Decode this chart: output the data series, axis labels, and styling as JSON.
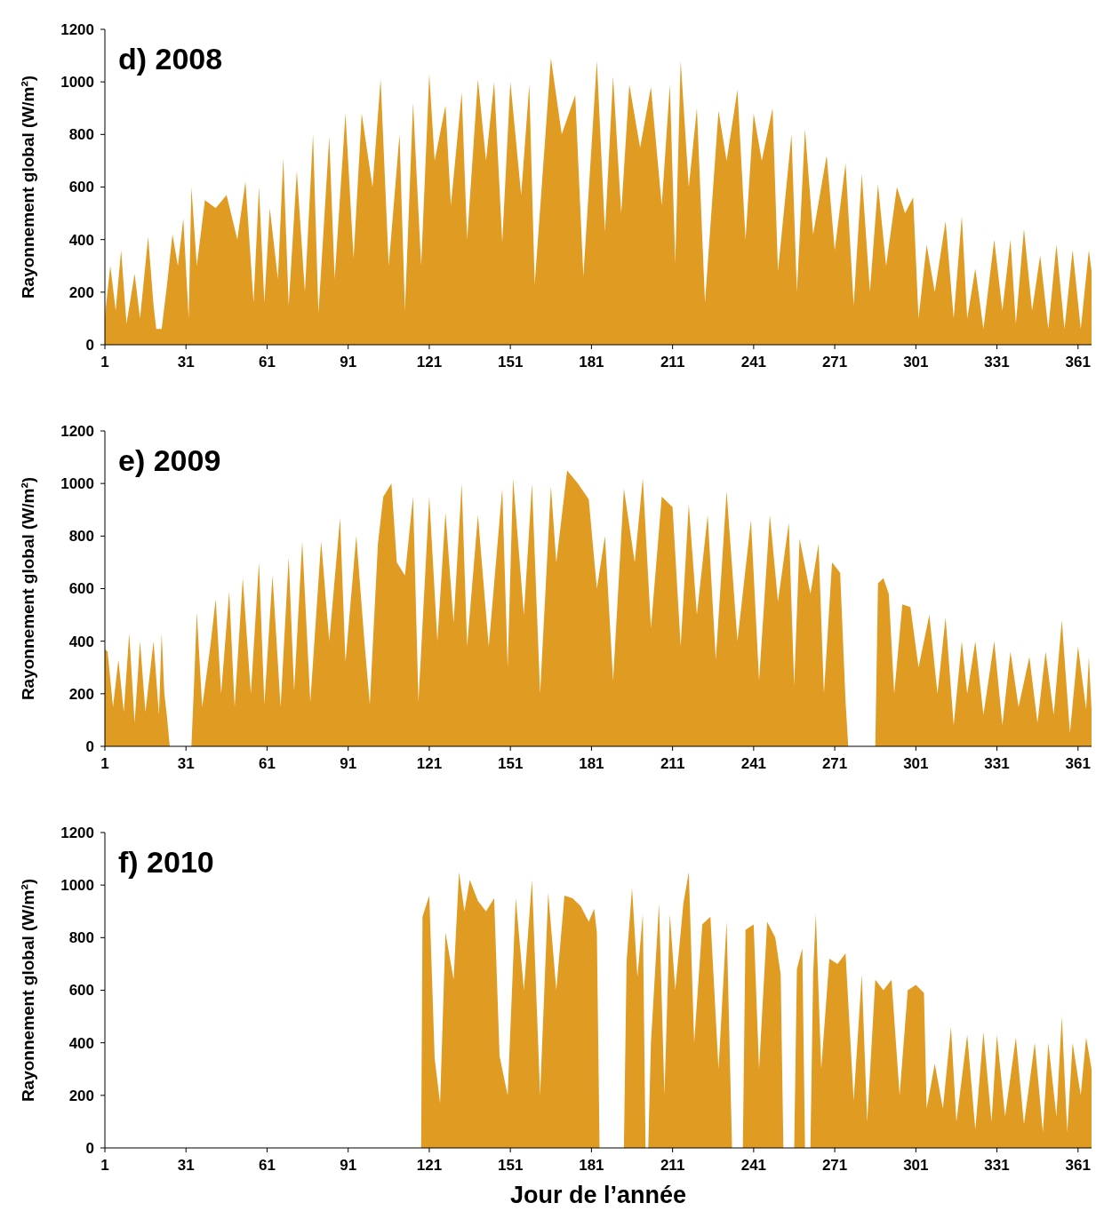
{
  "chart_data": [
    {
      "type": "area",
      "title": "d) 2008",
      "ylabel": "Rayonnement global (W/m²)",
      "xlim": [
        1,
        366
      ],
      "xticks": [
        1,
        31,
        61,
        91,
        121,
        151,
        181,
        211,
        241,
        271,
        301,
        331,
        361
      ],
      "ylim": [
        0,
        1200
      ],
      "yticks": [
        0,
        200,
        400,
        600,
        800,
        1000,
        1200
      ],
      "series": [
        {
          "color": "#e09b22",
          "x": [
            1,
            3,
            5,
            7,
            9,
            12,
            14,
            17,
            19,
            20,
            22,
            24,
            26,
            28,
            30,
            32,
            33,
            35,
            38,
            42,
            46,
            50,
            53,
            56,
            58,
            60,
            62,
            65,
            67,
            69,
            72,
            75,
            78,
            80,
            84,
            86,
            90,
            93,
            96,
            100,
            103,
            106,
            110,
            112,
            115,
            118,
            121,
            123,
            127,
            129,
            133,
            135,
            139,
            142,
            145,
            148,
            151,
            155,
            158,
            160,
            166,
            170,
            175,
            178,
            183,
            186,
            189,
            192,
            195,
            199,
            203,
            207,
            210,
            212,
            214,
            217,
            220,
            223,
            228,
            231,
            235,
            238,
            241,
            244,
            248,
            250,
            255,
            257,
            260,
            263,
            268,
            271,
            275,
            278,
            281,
            284,
            287,
            290,
            294,
            297,
            300,
            302,
            305,
            308,
            312,
            315,
            318,
            320,
            323,
            326,
            330,
            333,
            336,
            338,
            341,
            344,
            347,
            350,
            353,
            356,
            359,
            362,
            365,
            366
          ],
          "values": [
            110,
            300,
            130,
            360,
            80,
            270,
            100,
            410,
            150,
            60,
            60,
            230,
            420,
            300,
            480,
            100,
            600,
            300,
            550,
            520,
            570,
            400,
            620,
            160,
            600,
            160,
            520,
            250,
            710,
            150,
            660,
            200,
            800,
            120,
            790,
            250,
            880,
            330,
            880,
            600,
            1010,
            300,
            800,
            130,
            920,
            300,
            1030,
            700,
            910,
            530,
            960,
            400,
            1010,
            700,
            1000,
            390,
            1000,
            570,
            990,
            230,
            1090,
            800,
            950,
            260,
            1080,
            430,
            1020,
            500,
            990,
            750,
            980,
            530,
            990,
            310,
            1080,
            600,
            900,
            160,
            890,
            700,
            970,
            400,
            880,
            700,
            900,
            280,
            800,
            200,
            820,
            420,
            720,
            360,
            690,
            150,
            650,
            200,
            610,
            300,
            600,
            500,
            560,
            100,
            380,
            200,
            470,
            100,
            490,
            100,
            290,
            60,
            400,
            130,
            400,
            80,
            440,
            130,
            340,
            60,
            380,
            60,
            360,
            60,
            360,
            280
          ]
        }
      ]
    },
    {
      "type": "area",
      "title": "e) 2009",
      "ylabel": "Rayonnement global (W/m²)",
      "xlim": [
        1,
        366
      ],
      "xticks": [
        1,
        31,
        61,
        91,
        121,
        151,
        181,
        211,
        241,
        271,
        301,
        331,
        361
      ],
      "ylim": [
        0,
        1200
      ],
      "yticks": [
        0,
        200,
        400,
        600,
        800,
        1000,
        1200
      ],
      "series": [
        {
          "color": "#e09b22",
          "x": [
            1,
            2,
            4,
            6,
            8,
            10,
            12,
            14,
            16,
            19,
            21,
            22,
            23,
            24,
            25,
            33,
            34,
            35,
            37,
            40,
            42,
            44,
            47,
            49,
            52,
            55,
            58,
            60,
            63,
            66,
            69,
            71,
            74,
            77,
            81,
            84,
            88,
            90,
            94,
            97,
            99,
            102,
            104,
            107,
            109,
            112,
            115,
            117,
            121,
            124,
            127,
            130,
            133,
            135,
            139,
            143,
            148,
            150,
            152,
            156,
            159,
            162,
            166,
            168,
            172,
            176,
            180,
            183,
            186,
            189,
            193,
            197,
            200,
            203,
            207,
            211,
            214,
            217,
            220,
            224,
            227,
            231,
            235,
            240,
            243,
            247,
            250,
            254,
            256,
            258,
            262,
            265,
            267,
            270,
            273,
            275,
            276,
            286,
            287,
            289,
            291,
            293,
            296,
            299,
            302,
            306,
            309,
            312,
            315,
            318,
            320,
            323,
            326,
            330,
            333,
            336,
            339,
            343,
            346,
            349,
            352,
            355,
            358,
            361,
            364,
            365,
            366
          ],
          "values": [
            370,
            360,
            150,
            330,
            130,
            430,
            90,
            400,
            130,
            400,
            120,
            430,
            200,
            110,
            0,
            0,
            240,
            510,
            150,
            380,
            560,
            200,
            590,
            150,
            640,
            200,
            700,
            160,
            650,
            150,
            720,
            210,
            780,
            170,
            780,
            400,
            870,
            320,
            800,
            400,
            160,
            770,
            950,
            1000,
            700,
            650,
            950,
            170,
            950,
            400,
            890,
            470,
            1000,
            380,
            880,
            380,
            980,
            300,
            1020,
            500,
            1000,
            200,
            990,
            700,
            1050,
            1000,
            940,
            600,
            800,
            250,
            980,
            700,
            1020,
            450,
            950,
            910,
            380,
            920,
            500,
            880,
            330,
            970,
            400,
            860,
            250,
            880,
            550,
            850,
            230,
            790,
            580,
            770,
            200,
            700,
            660,
            170,
            0,
            0,
            620,
            640,
            580,
            200,
            540,
            530,
            300,
            500,
            200,
            490,
            80,
            400,
            200,
            400,
            120,
            400,
            80,
            360,
            150,
            340,
            90,
            360,
            120,
            480,
            50,
            380,
            140,
            340,
            140
          ]
        }
      ]
    },
    {
      "type": "area",
      "title": "f) 2010",
      "ylabel": "Rayonnement global (W/m²)",
      "xlabel": "Jour de l’année",
      "xlim": [
        1,
        366
      ],
      "xticks": [
        1,
        31,
        61,
        91,
        121,
        151,
        181,
        211,
        241,
        271,
        301,
        331,
        361
      ],
      "ylim": [
        0,
        1200
      ],
      "yticks": [
        0,
        200,
        400,
        600,
        800,
        1000,
        1200
      ],
      "series": [
        {
          "color": "#e09b22",
          "x": [
            1,
            118,
            118.5,
            121,
            123,
            125,
            127,
            130,
            132,
            134,
            136,
            139,
            142,
            145,
            147,
            150,
            153,
            156,
            159,
            162,
            165,
            168,
            171,
            174,
            177,
            180,
            182,
            183,
            184,
            193,
            194,
            196,
            198,
            200,
            201,
            202,
            203,
            206,
            208,
            210,
            212,
            215,
            217,
            219,
            222,
            225,
            228,
            231,
            233,
            237,
            238,
            241,
            243,
            246,
            249,
            251,
            252,
            256,
            257,
            259,
            260,
            262,
            263,
            264,
            266,
            269,
            272,
            275,
            278,
            281,
            283,
            286,
            289,
            292,
            295,
            298,
            301,
            304,
            305,
            308,
            311,
            314,
            316,
            320,
            323,
            326,
            329,
            331,
            334,
            338,
            341,
            345,
            348,
            350,
            353,
            355,
            357,
            359,
            362,
            364,
            366
          ],
          "values": [
            0,
            0,
            880,
            960,
            340,
            170,
            820,
            640,
            1050,
            900,
            1020,
            940,
            900,
            950,
            350,
            200,
            950,
            600,
            1020,
            200,
            970,
            600,
            960,
            950,
            920,
            860,
            910,
            820,
            0,
            0,
            710,
            990,
            650,
            890,
            0,
            0,
            400,
            930,
            200,
            890,
            600,
            930,
            1050,
            400,
            850,
            880,
            300,
            860,
            0,
            0,
            830,
            850,
            300,
            860,
            800,
            660,
            0,
            0,
            680,
            760,
            0,
            0,
            660,
            890,
            300,
            720,
            700,
            740,
            180,
            660,
            100,
            640,
            600,
            640,
            200,
            600,
            620,
            590,
            150,
            320,
            150,
            460,
            100,
            430,
            70,
            440,
            100,
            430,
            120,
            420,
            90,
            400,
            60,
            400,
            120,
            500,
            60,
            400,
            200,
            420,
            300
          ]
        }
      ]
    }
  ]
}
